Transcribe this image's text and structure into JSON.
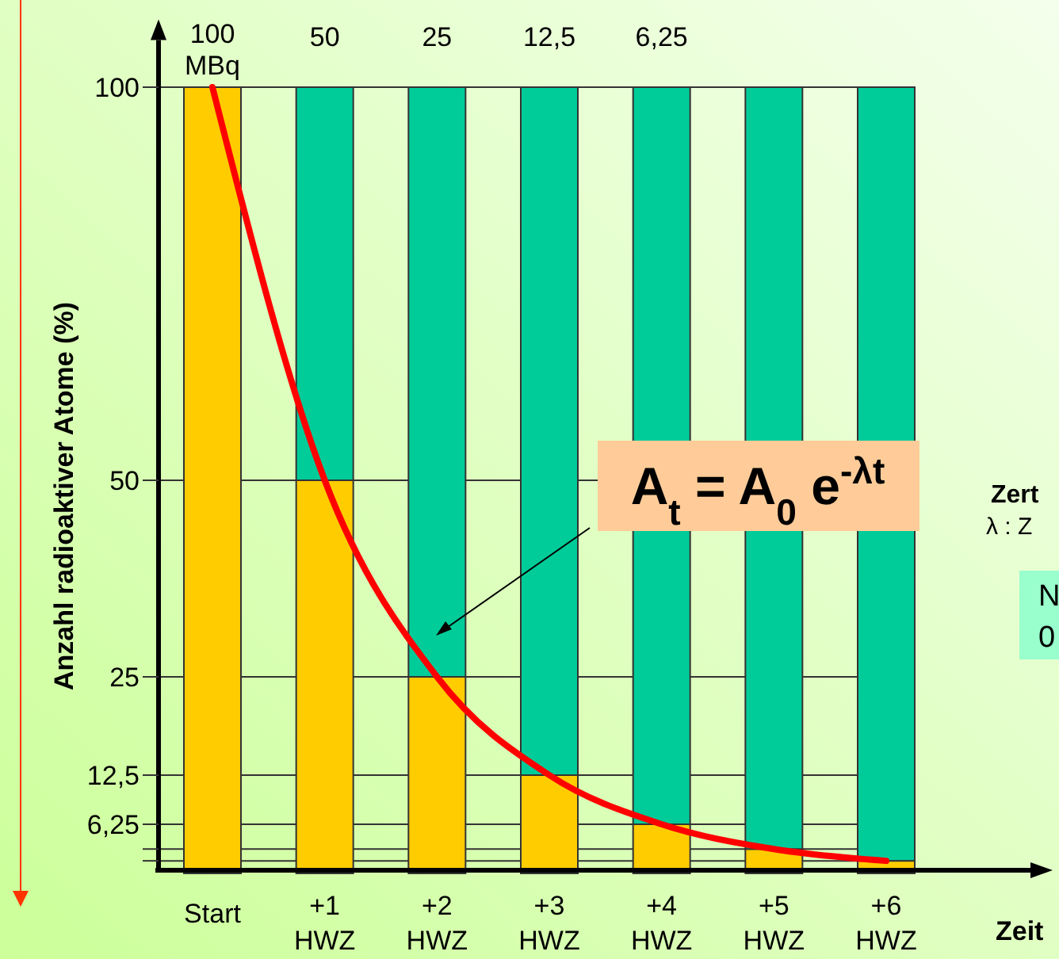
{
  "chart_data": {
    "type": "bar",
    "stacked": true,
    "xlabel": "Zeit",
    "ylabel": "Anzahl radioaktiver Atome (%)",
    "categories": [
      "Start",
      "+1 HWZ",
      "+2 HWZ",
      "+3 HWZ",
      "+4 HWZ",
      "+5 HWZ",
      "+6 HWZ"
    ],
    "series": [
      {
        "color": "#ffcc00",
        "values": [
          100,
          50,
          25,
          12.5,
          6.25,
          3.1,
          1.6
        ]
      },
      {
        "color": "#00cc99",
        "values": [
          0,
          50,
          75,
          87.5,
          93.75,
          96.9,
          98.4
        ]
      },
      {
        "type": "line",
        "color": "#ff0000",
        "values": [
          100,
          50,
          25,
          12.5,
          6.25,
          3.1,
          1.6
        ]
      }
    ],
    "ylim": [
      0,
      106
    ],
    "yticks": [
      {
        "value": 100,
        "label": "100"
      },
      {
        "value": 50,
        "label": "50"
      },
      {
        "value": 25,
        "label": "25"
      },
      {
        "value": 12.5,
        "label": "12,5"
      },
      {
        "value": 6.25,
        "label": "6,25"
      },
      {
        "value": 3.1,
        "label": null
      },
      {
        "value": 1.6,
        "label": null
      }
    ],
    "grid": "y",
    "marker": "none",
    "line_style": "solid",
    "annotations": [
      "100 MBq",
      "50",
      "25",
      "12,5",
      "6,25",
      "A$_{t}$ = A$_{0}$ e$^{-λt}$",
      "Zert",
      "λ : Z",
      "N",
      "0"
    ]
  }
}
